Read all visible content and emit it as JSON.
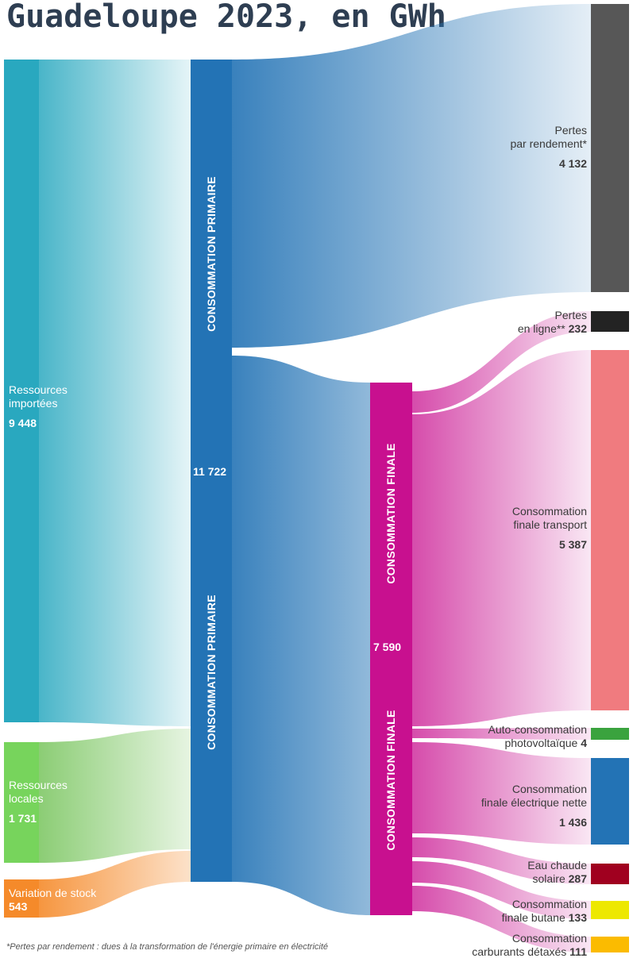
{
  "title": "Guadeloupe 2023, en GWh",
  "colors": {
    "imported": "#29a8bf",
    "local": "#77d45c",
    "stock": "#f58a2a",
    "primary": "#2373b5",
    "final": "#c8108f",
    "pertes_rendement": "#575757",
    "pertes_ligne": "#232323",
    "transport": "#f07b7f",
    "pv": "#3aa33e",
    "elec": "#2373b5",
    "eau": "#a0001f",
    "butane": "#ede800",
    "carburants": "#fbbb00"
  },
  "nodes": {
    "imported": {
      "label_1": "Ressources",
      "label_2": "importées",
      "value": "9 448"
    },
    "local": {
      "label_1": "Ressources",
      "label_2": "locales",
      "value": "1 731"
    },
    "stock": {
      "label": "Variation de stock",
      "value": "543"
    },
    "primary": {
      "label": "CONSOMMATION PRIMAIRE",
      "value": "11 722"
    },
    "final": {
      "label": "CONSOMMATION FINALE",
      "value": "7 590"
    },
    "pertes_rendement": {
      "label_1": "Pertes",
      "label_2": "par rendement*",
      "value": "4 132"
    },
    "pertes_ligne": {
      "label_1": "Pertes",
      "label_2": "en ligne**",
      "value": "232"
    },
    "transport": {
      "label_1": "Consommation",
      "label_2": "finale transport",
      "value": "5 387"
    },
    "pv": {
      "label_1": "Auto-consommation",
      "label_2": "photovoltaïque",
      "value": "4"
    },
    "elec": {
      "label_1": "Consommation",
      "label_2": "finale électrique nette",
      "value": "1 436"
    },
    "eau": {
      "label_1": "Eau chaude",
      "label_2": "solaire",
      "value": "287"
    },
    "butane": {
      "label_1": "Consommation",
      "label_2": "finale butane",
      "value": "133"
    },
    "carburants": {
      "label_1": "Consommation",
      "label_2": "carburants détaxés",
      "value": "111"
    }
  },
  "footnote": "*Pertes par rendement : dues à la transformation de l'énergie primaire en électricité"
}
